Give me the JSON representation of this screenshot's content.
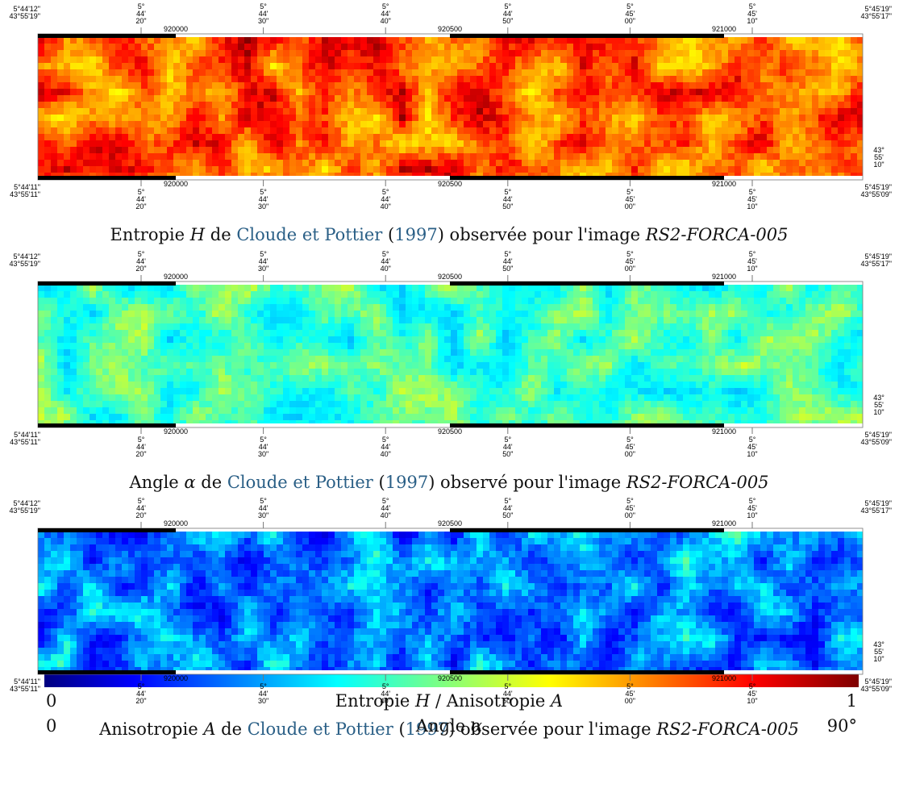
{
  "frame": {
    "corner_top_left": [
      "5°44'12\"",
      "43°55'19\""
    ],
    "corner_top_right": [
      "5°45'19\"",
      "43°55'17\""
    ],
    "corner_bottom_left": [
      "5°44'11\"",
      "43°55'11\""
    ],
    "corner_bottom_right": [
      "5°45'19\"",
      "43°55'09\""
    ],
    "right_label": [
      "43°",
      "55'",
      "10\""
    ],
    "lon_ticks": [
      [
        "5°",
        "44'",
        "20\""
      ],
      [
        "5°",
        "44'",
        "30\""
      ],
      [
        "5°",
        "44'",
        "40\""
      ],
      [
        "5°",
        "44'",
        "50\""
      ],
      [
        "5°",
        "45'",
        "00\""
      ],
      [
        "5°",
        "45'",
        "10\""
      ]
    ],
    "utm_ticks": [
      "920000",
      "920500",
      "921000"
    ]
  },
  "panels": [
    {
      "caption": [
        {
          "text": "Entropie ",
          "style": "plain"
        },
        {
          "text": "H",
          "style": "math"
        },
        {
          "text": " de ",
          "style": "plain"
        },
        {
          "text": "Cloude et Pottier",
          "style": "link"
        },
        {
          "text": " (",
          "style": "plain"
        },
        {
          "text": "1997",
          "style": "link"
        },
        {
          "text": ") observée pour l'image ",
          "style": "plain"
        },
        {
          "text": "RS2-FORCA-005",
          "style": "italic"
        }
      ]
    },
    {
      "caption": [
        {
          "text": "Angle ",
          "style": "plain"
        },
        {
          "text": "α",
          "style": "math"
        },
        {
          "text": " de ",
          "style": "plain"
        },
        {
          "text": "Cloude et Pottier",
          "style": "link"
        },
        {
          "text": " (",
          "style": "plain"
        },
        {
          "text": "1997",
          "style": "link"
        },
        {
          "text": ") observé pour l'image ",
          "style": "plain"
        },
        {
          "text": "RS2-FORCA-005",
          "style": "italic"
        }
      ]
    },
    {
      "caption": [
        {
          "text": "Anisotropie ",
          "style": "plain"
        },
        {
          "text": "A",
          "style": "math"
        },
        {
          "text": " de ",
          "style": "plain"
        },
        {
          "text": "Cloude et Pottier",
          "style": "link"
        },
        {
          "text": " (",
          "style": "plain"
        },
        {
          "text": "1997",
          "style": "link"
        },
        {
          "text": ") observée pour l'image ",
          "style": "plain"
        },
        {
          "text": "RS2-FORCA-005",
          "style": "italic"
        }
      ]
    }
  ],
  "colorbar": {
    "rows": [
      {
        "left": "0",
        "label": [
          {
            "text": "Entropie ",
            "style": "plain"
          },
          {
            "text": "H",
            "style": "math"
          },
          {
            "text": " / Anisotropie ",
            "style": "plain"
          },
          {
            "text": "A",
            "style": "math"
          }
        ],
        "right": "1"
      },
      {
        "left": "0",
        "label": [
          {
            "text": "Angle ",
            "style": "plain"
          },
          {
            "text": "α",
            "style": "math"
          }
        ],
        "right": "90°"
      }
    ]
  }
}
